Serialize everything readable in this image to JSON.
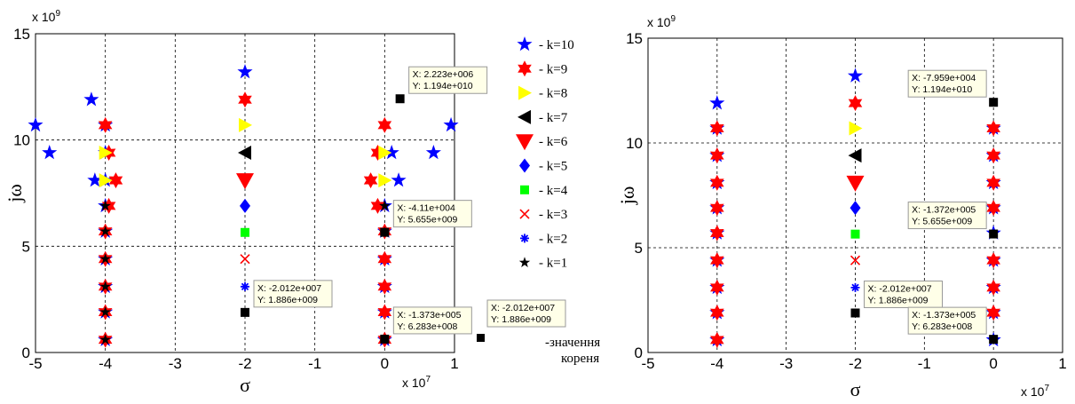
{
  "chart_data": [
    {
      "type": "scatter",
      "xlabel": "σ",
      "ylabel": "jω",
      "x_multiplier": "x 10",
      "x_multiplier_exp": "7",
      "y_multiplier": "x 10",
      "y_multiplier_exp": "9",
      "xlim": [
        -5,
        1
      ],
      "ylim": [
        0,
        15
      ],
      "xticks": [
        "-5",
        "-4",
        "-3",
        "-2",
        "-1",
        "0",
        "1"
      ],
      "yticks": [
        "0",
        "5",
        "10",
        "15"
      ],
      "grid": true,
      "series": [
        {
          "name": "- k=10",
          "marker": "star",
          "color": "#0000ff",
          "points": [
            [
              -5,
              10.7
            ],
            [
              -4.8,
              9.4
            ],
            [
              -4.2,
              11.9
            ],
            [
              -4.15,
              8.1
            ],
            [
              -4,
              0.6
            ],
            [
              -4,
              1.9
            ],
            [
              -4,
              3.1
            ],
            [
              -4,
              4.4
            ],
            [
              -4,
              5.7
            ],
            [
              -4,
              6.9
            ],
            [
              -4,
              8.1
            ],
            [
              -4,
              9.4
            ],
            [
              -4,
              10.7
            ],
            [
              -2,
              13.2
            ],
            [
              0,
              0.6
            ],
            [
              0,
              1.9
            ],
            [
              0,
              3.1
            ],
            [
              0,
              4.4
            ],
            [
              0,
              5.7
            ],
            [
              0,
              6.9
            ],
            [
              0.2,
              8.1
            ],
            [
              0.1,
              9.4
            ],
            [
              0.7,
              9.4
            ],
            [
              0.95,
              10.7
            ]
          ]
        },
        {
          "name": "- k=9",
          "marker": "hexstar",
          "color": "#ff0000",
          "points": [
            [
              -4,
              10.7
            ],
            [
              -3.95,
              9.4
            ],
            [
              -3.85,
              8.1
            ],
            [
              -3.95,
              6.9
            ],
            [
              -4,
              5.7
            ],
            [
              -4,
              4.4
            ],
            [
              -4,
              3.1
            ],
            [
              -4,
              1.9
            ],
            [
              -4,
              0.6
            ],
            [
              -2,
              11.9
            ],
            [
              0,
              10.7
            ],
            [
              -0.1,
              9.4
            ],
            [
              -0.2,
              8.1
            ],
            [
              -0.1,
              6.9
            ],
            [
              0,
              5.7
            ],
            [
              0,
              4.4
            ],
            [
              0,
              3.1
            ],
            [
              0,
              1.9
            ],
            [
              0,
              0.6
            ]
          ]
        },
        {
          "name": "- k=8",
          "marker": "tri-right",
          "color": "#ffff00",
          "points": [
            [
              -4,
              9.4
            ],
            [
              -4,
              8.1
            ],
            [
              -2,
              10.7
            ],
            [
              0,
              9.4
            ],
            [
              0,
              8.1
            ]
          ]
        },
        {
          "name": "- k=7",
          "marker": "tri-left",
          "color": "#000000",
          "points": [
            [
              -2,
              9.4
            ]
          ]
        },
        {
          "name": "- k=6",
          "marker": "tri-down",
          "color": "#ff0000",
          "points": [
            [
              -2,
              8.1
            ]
          ]
        },
        {
          "name": "- k=5",
          "marker": "diamond",
          "color": "#0000ff",
          "points": [
            [
              -2,
              6.9
            ]
          ]
        },
        {
          "name": "- k=4",
          "marker": "square",
          "color": "#00ff00",
          "points": [
            [
              -2,
              5.65
            ]
          ]
        },
        {
          "name": "- k=3",
          "marker": "x",
          "color": "#ff0000",
          "points": [
            [
              -2,
              4.4
            ]
          ]
        },
        {
          "name": "- k=2",
          "marker": "asterisk",
          "color": "#0000ff",
          "points": [
            [
              -2,
              3.1
            ]
          ]
        },
        {
          "name": "- k=1",
          "marker": "smallstar",
          "color": "#000000",
          "points": [
            [
              -4,
              0.6
            ],
            [
              -4,
              1.9
            ],
            [
              -4,
              3.1
            ],
            [
              -4,
              4.4
            ],
            [
              -4,
              5.7
            ],
            [
              -4,
              6.9
            ],
            [
              0,
              5.65
            ],
            [
              0,
              6.9
            ]
          ]
        },
        {
          "name": "",
          "marker": "square",
          "color": "#000000",
          "points": [
            [
              -2,
              1.886
            ],
            [
              0,
              0.63
            ],
            [
              0,
              5.655
            ],
            [
              0.22,
              11.94
            ]
          ]
        }
      ],
      "datatips": [
        {
          "x_text": "X: 2.223e+006",
          "y_text": "Y: 1.194e+010",
          "px": 0.22,
          "py": 11.94
        },
        {
          "x_text": "X: -4.11e+004",
          "y_text": "Y: 5.655e+009",
          "px": 0,
          "py": 5.655
        },
        {
          "x_text": "X: -2.012e+007",
          "y_text": "Y: 1.886e+009",
          "px": -2,
          "py": 1.886
        },
        {
          "x_text": "X: -1.373e+005",
          "y_text": "Y: 6.283e+008",
          "px": 0,
          "py": 0.63
        }
      ]
    },
    {
      "type": "scatter",
      "xlabel": "σ",
      "ylabel": "jω",
      "x_multiplier": "x 10",
      "x_multiplier_exp": "7",
      "y_multiplier": "x 10",
      "y_multiplier_exp": "9",
      "xlim": [
        -5,
        1
      ],
      "ylim": [
        0,
        15
      ],
      "xticks": [
        "-5",
        "-4",
        "-3",
        "-2",
        "-1",
        "0",
        "1"
      ],
      "yticks": [
        "0",
        "5",
        "10",
        "15"
      ],
      "grid": true,
      "series": [
        {
          "name": "- k=10",
          "marker": "star",
          "color": "#0000ff",
          "points": [
            [
              -4,
              0.6
            ],
            [
              -4,
              1.9
            ],
            [
              -4,
              3.1
            ],
            [
              -4,
              4.4
            ],
            [
              -4,
              5.7
            ],
            [
              -4,
              6.9
            ],
            [
              -4,
              8.1
            ],
            [
              -4,
              9.4
            ],
            [
              -4,
              10.7
            ],
            [
              -4,
              11.9
            ],
            [
              -2,
              13.2
            ],
            [
              0,
              0.6
            ],
            [
              0,
              1.9
            ],
            [
              0,
              3.1
            ],
            [
              0,
              4.4
            ],
            [
              0,
              5.7
            ],
            [
              0,
              6.9
            ],
            [
              0,
              8.1
            ],
            [
              0,
              9.4
            ],
            [
              0,
              10.7
            ]
          ]
        },
        {
          "name": "- k=9",
          "marker": "hexstar",
          "color": "#ff0000",
          "points": [
            [
              -4,
              0.6
            ],
            [
              -4,
              1.9
            ],
            [
              -4,
              3.1
            ],
            [
              -4,
              4.4
            ],
            [
              -4,
              5.7
            ],
            [
              -4,
              6.9
            ],
            [
              -4,
              8.1
            ],
            [
              -4,
              9.4
            ],
            [
              -4,
              10.7
            ],
            [
              -2,
              11.9
            ],
            [
              0,
              1.9
            ],
            [
              0,
              3.1
            ],
            [
              0,
              4.4
            ],
            [
              0,
              6.9
            ],
            [
              0,
              8.1
            ],
            [
              0,
              9.4
            ],
            [
              0,
              10.7
            ]
          ]
        },
        {
          "name": "- k=8",
          "marker": "tri-right",
          "color": "#ffff00",
          "points": [
            [
              -2,
              10.7
            ]
          ]
        },
        {
          "name": "- k=7",
          "marker": "tri-left",
          "color": "#000000",
          "points": [
            [
              -2,
              9.4
            ]
          ]
        },
        {
          "name": "- k=6",
          "marker": "tri-down",
          "color": "#ff0000",
          "points": [
            [
              -2,
              8.1
            ]
          ]
        },
        {
          "name": "- k=5",
          "marker": "diamond",
          "color": "#0000ff",
          "points": [
            [
              -2,
              6.9
            ]
          ]
        },
        {
          "name": "- k=4",
          "marker": "square",
          "color": "#00ff00",
          "points": [
            [
              -2,
              5.65
            ]
          ]
        },
        {
          "name": "- k=3",
          "marker": "x",
          "color": "#ff0000",
          "points": [
            [
              -2,
              4.4
            ]
          ]
        },
        {
          "name": "- k=2",
          "marker": "asterisk",
          "color": "#0000ff",
          "points": [
            [
              -2,
              3.1
            ]
          ]
        },
        {
          "name": "",
          "marker": "square",
          "color": "#000000",
          "points": [
            [
              -2,
              1.886
            ],
            [
              0,
              0.63
            ],
            [
              0,
              5.655
            ],
            [
              0,
              11.94
            ]
          ]
        }
      ],
      "datatips": [
        {
          "x_text": "X: -7.959e+004",
          "y_text": "Y: 1.194e+010",
          "px": 0,
          "py": 11.94
        },
        {
          "x_text": "X: -1.372e+005",
          "y_text": "Y: 5.655e+009",
          "px": 0,
          "py": 5.655
        },
        {
          "x_text": "X: -2.012e+007",
          "y_text": "Y: 1.886e+009",
          "px": -2,
          "py": 1.886
        },
        {
          "x_text": "X: -1.373e+005",
          "y_text": "Y: 6.283e+008",
          "px": 0,
          "py": 0.63
        }
      ]
    }
  ],
  "legend": [
    {
      "label": "- k=10",
      "marker": "star",
      "color": "#0000ff"
    },
    {
      "label": "- k=9",
      "marker": "hexstar",
      "color": "#ff0000"
    },
    {
      "label": "- k=8",
      "marker": "tri-right",
      "color": "#ffff00"
    },
    {
      "label": "- k=7",
      "marker": "tri-left",
      "color": "#000000"
    },
    {
      "label": "- k=6",
      "marker": "tri-down",
      "color": "#ff0000"
    },
    {
      "label": "- k=5",
      "marker": "diamond",
      "color": "#0000ff"
    },
    {
      "label": "- k=4",
      "marker": "square",
      "color": "#00ff00"
    },
    {
      "label": "- k=3",
      "marker": "x",
      "color": "#ff0000"
    },
    {
      "label": "- k=2",
      "marker": "asterisk",
      "color": "#0000ff"
    },
    {
      "label": "- k=1",
      "marker": "smallstar",
      "color": "#000000"
    }
  ],
  "root_note": {
    "marker_color": "#000000",
    "line1": "-значення",
    "line2": "кореня",
    "tip_x": "X: -2.012e+007",
    "tip_y": "Y: 1.886e+009"
  }
}
